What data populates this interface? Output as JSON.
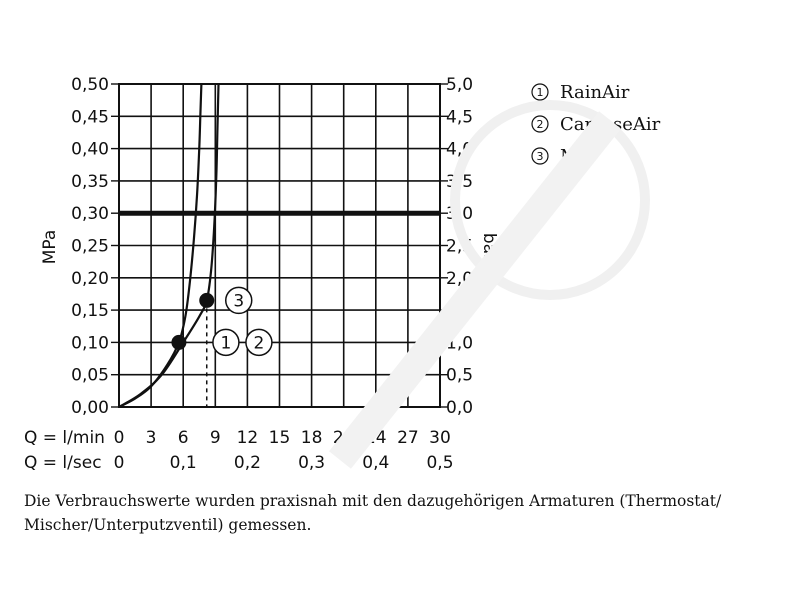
{
  "chart_data": {
    "type": "line",
    "title": "",
    "ylabel_left": "MPa",
    "ylabel_right": "bar",
    "x_label_lmin": "Q = l/min",
    "x_label_lsec": "Q = l/sec",
    "xlim": [
      0,
      30
    ],
    "ylim": [
      0,
      0.5
    ],
    "grid": true,
    "x_ticks_lmin": [
      0,
      3,
      6,
      9,
      12,
      15,
      18,
      21,
      24,
      27,
      30
    ],
    "x_tick_labels_lmin": [
      "0",
      "3",
      "6",
      "9",
      "12",
      "15",
      "18",
      "21",
      "24",
      "27",
      "30"
    ],
    "x_ticks_lsec_values_lmin": [
      0,
      6,
      12,
      18,
      24,
      30
    ],
    "x_tick_labels_lsec": [
      "0",
      "0,1",
      "0,2",
      "0,3",
      "0,4",
      "0,5"
    ],
    "y_ticks": [
      0,
      0.05,
      0.1,
      0.15,
      0.2,
      0.25,
      0.3,
      0.35,
      0.4,
      0.45,
      0.5
    ],
    "y_tick_labels_left": [
      "0,00",
      "0,05",
      "0,10",
      "0,15",
      "0,20",
      "0,25",
      "0,30",
      "0,35",
      "0,40",
      "0,45",
      "0,50"
    ],
    "y_tick_labels_right": [
      "0,0",
      "0,5",
      "1,0",
      "1,5",
      "2,0",
      "2,5",
      "3,0",
      "3,5",
      "4,0",
      "4,5",
      "5,0"
    ],
    "reference_line_y": 0.3,
    "series": [
      {
        "id": "1-2",
        "x": [
          0,
          1.5,
          3,
          4.5,
          5.6,
          6.2,
          6.6,
          7.0,
          7.3,
          7.5,
          7.6,
          7.7
        ],
        "y": [
          0,
          0.013,
          0.032,
          0.065,
          0.1,
          0.14,
          0.19,
          0.26,
          0.33,
          0.4,
          0.45,
          0.5
        ]
      },
      {
        "id": "3",
        "x": [
          0,
          2,
          4,
          6,
          7.5,
          8.2,
          8.6,
          8.9,
          9.1,
          9.2,
          9.3
        ],
        "y": [
          0,
          0.02,
          0.05,
          0.1,
          0.14,
          0.165,
          0.21,
          0.28,
          0.36,
          0.43,
          0.5
        ]
      }
    ],
    "markers": [
      {
        "x": 5.6,
        "y": 0.1,
        "labels": [
          "1",
          "2"
        ]
      },
      {
        "x": 8.2,
        "y": 0.165,
        "labels": [
          "3"
        ]
      }
    ],
    "dashed_dropline": {
      "x": 8.2,
      "y_from": 0.165,
      "y_to": 0
    },
    "legend": [
      {
        "num": "1",
        "name": "RainAir"
      },
      {
        "num": "2",
        "name": "CaresseAir"
      },
      {
        "num": "3",
        "name": "Mix"
      }
    ],
    "legend_position": "top-right"
  },
  "note_text": "Die Verbrauchswerte wurden praxisnah mit den dazugehörigen Armaturen (Thermostat/ Mischer/Unterputzventil) gemessen."
}
